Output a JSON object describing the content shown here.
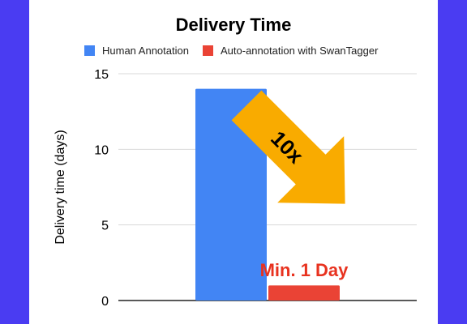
{
  "colors": {
    "background": "#4a3cf2",
    "panel": "#ffffff",
    "gridline": "#d9d9d9",
    "axis": "#222222",
    "human": "#4285f4",
    "auto": "#ea4335",
    "arrow": "#f9ab00",
    "callout": "#e8321f"
  },
  "chart_data": {
    "type": "bar",
    "title": "Delivery Time",
    "xlabel": "",
    "ylabel": "Delivery time (days)",
    "ylim": [
      0,
      15
    ],
    "yticks": [
      0,
      5,
      10,
      15
    ],
    "grid": true,
    "legend_position": "top",
    "categories": [
      ""
    ],
    "series": [
      {
        "name": "Human Annotation",
        "values": [
          14
        ],
        "color": "#4285f4"
      },
      {
        "name": "Auto-annotation with SwanTagger",
        "values": [
          1
        ],
        "color": "#ea4335"
      }
    ],
    "annotations": [
      {
        "text": "10x",
        "type": "arrow-label",
        "icon": "down-right-arrow"
      },
      {
        "text": "Min. 1 Day",
        "type": "bar-label",
        "series": 1
      }
    ]
  }
}
